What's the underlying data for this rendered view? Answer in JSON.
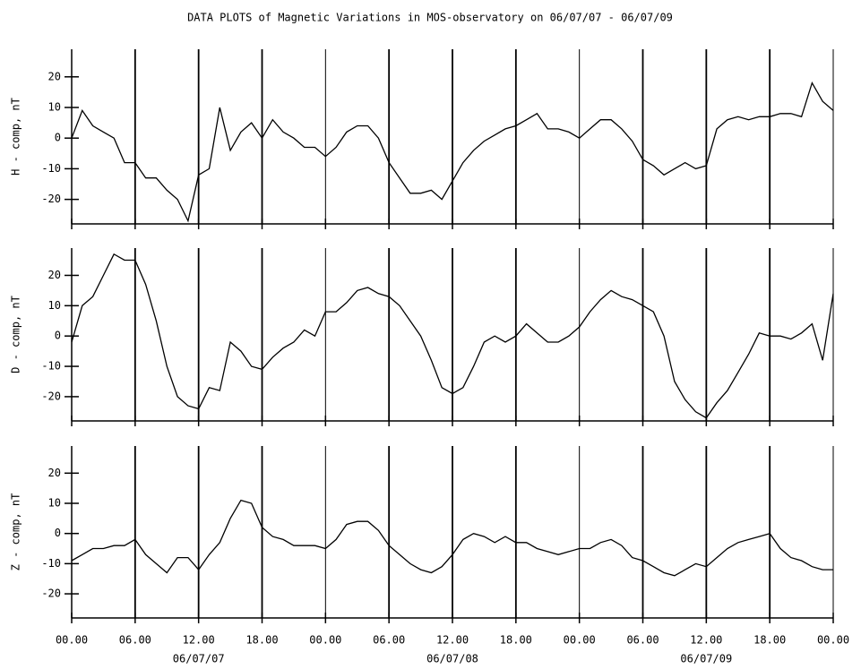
{
  "title": "DATA PLOTS of Magnetic Variations in MOS-observatory on 06/07/07 - 06/07/09",
  "chart_data": [
    {
      "type": "line",
      "ylabel": "H - comp, nT",
      "x": [
        0,
        1,
        2,
        3,
        4,
        5,
        6,
        7,
        8,
        9,
        10,
        11,
        12,
        13,
        14,
        15,
        16,
        17,
        18,
        19,
        20,
        21,
        22,
        23,
        24,
        25,
        26,
        27,
        28,
        29,
        30,
        31,
        32,
        33,
        34,
        35,
        36,
        37,
        38,
        39,
        40,
        41,
        42,
        43,
        44,
        45,
        46,
        47,
        48,
        49,
        50,
        51,
        52,
        53,
        54,
        55,
        56,
        57,
        58,
        59,
        60,
        61,
        62,
        63,
        64,
        65,
        66,
        67,
        68,
        69,
        70,
        71,
        72
      ],
      "series": [
        {
          "color": "#000000",
          "values": [
            0,
            9,
            4,
            2,
            0,
            -8,
            -8,
            -13,
            -13,
            -17,
            -20,
            -27,
            -12,
            -10,
            10,
            -4,
            2,
            5,
            0,
            6,
            2,
            0,
            -3,
            -3,
            -6,
            -3,
            2,
            4,
            4,
            0,
            -8,
            -13,
            -18,
            -18,
            -17,
            -20,
            -14,
            -8,
            -4,
            -1,
            1,
            3,
            4,
            6,
            8,
            3,
            3,
            2,
            0,
            3,
            6,
            6,
            3,
            -1,
            -7,
            -9,
            -12,
            -10,
            -8,
            -10,
            -9,
            3,
            6,
            7,
            6,
            7,
            7,
            8,
            8,
            7,
            18,
            12,
            9
          ]
        }
      ],
      "xlim": [
        0,
        72
      ],
      "ylim": [
        -28,
        29
      ],
      "xticks": [
        0,
        6,
        12,
        18,
        24,
        30,
        36,
        42,
        48,
        54,
        60,
        66,
        72
      ],
      "yticks": [
        -20,
        -10,
        0,
        10,
        20
      ],
      "grid": true
    },
    {
      "type": "line",
      "ylabel": "D - comp, nT",
      "x": [
        0,
        1,
        2,
        3,
        4,
        5,
        6,
        7,
        8,
        9,
        10,
        11,
        12,
        13,
        14,
        15,
        16,
        17,
        18,
        19,
        20,
        21,
        22,
        23,
        24,
        25,
        26,
        27,
        28,
        29,
        30,
        31,
        32,
        33,
        34,
        35,
        36,
        37,
        38,
        39,
        40,
        41,
        42,
        43,
        44,
        45,
        46,
        47,
        48,
        49,
        50,
        51,
        52,
        53,
        54,
        55,
        56,
        57,
        58,
        59,
        60,
        61,
        62,
        63,
        64,
        65,
        66,
        67,
        68,
        69,
        70,
        71,
        72
      ],
      "series": [
        {
          "color": "#000000",
          "values": [
            -2,
            10,
            13,
            20,
            27,
            25,
            25,
            17,
            5,
            -10,
            -20,
            -23,
            -24,
            -17,
            -18,
            -2,
            -5,
            -10,
            -11,
            -7,
            -4,
            -2,
            2,
            0,
            8,
            8,
            11,
            15,
            16,
            14,
            13,
            10,
            5,
            0,
            -8,
            -17,
            -19,
            -17,
            -10,
            -2,
            0,
            -2,
            0,
            4,
            1,
            -2,
            -2,
            0,
            3,
            8,
            12,
            15,
            13,
            12,
            10,
            8,
            0,
            -15,
            -21,
            -25,
            -27,
            -22,
            -18,
            -12,
            -6,
            1,
            0,
            0,
            -1,
            1,
            4,
            -8,
            14
          ]
        }
      ],
      "xlim": [
        0,
        72
      ],
      "ylim": [
        -28,
        29
      ],
      "xticks": [
        0,
        6,
        12,
        18,
        24,
        30,
        36,
        42,
        48,
        54,
        60,
        66,
        72
      ],
      "yticks": [
        -20,
        -10,
        0,
        10,
        20
      ],
      "grid": true
    },
    {
      "type": "line",
      "ylabel": "Z - comp, nT",
      "x": [
        0,
        1,
        2,
        3,
        4,
        5,
        6,
        7,
        8,
        9,
        10,
        11,
        12,
        13,
        14,
        15,
        16,
        17,
        18,
        19,
        20,
        21,
        22,
        23,
        24,
        25,
        26,
        27,
        28,
        29,
        30,
        31,
        32,
        33,
        34,
        35,
        36,
        37,
        38,
        39,
        40,
        41,
        42,
        43,
        44,
        45,
        46,
        47,
        48,
        49,
        50,
        51,
        52,
        53,
        54,
        55,
        56,
        57,
        58,
        59,
        60,
        61,
        62,
        63,
        64,
        65,
        66,
        67,
        68,
        69,
        70,
        71,
        72
      ],
      "series": [
        {
          "color": "#000000",
          "values": [
            -9,
            -7,
            -5,
            -5,
            -4,
            -4,
            -2,
            -7,
            -10,
            -13,
            -8,
            -8,
            -12,
            -7,
            -3,
            5,
            11,
            10,
            2,
            -1,
            -2,
            -4,
            -4,
            -4,
            -5,
            -2,
            3,
            4,
            4,
            1,
            -4,
            -7,
            -10,
            -12,
            -13,
            -11,
            -7,
            -2,
            0,
            -1,
            -3,
            -1,
            -3,
            -3,
            -5,
            -6,
            -7,
            -6,
            -5,
            -5,
            -3,
            -2,
            -4,
            -8,
            -9,
            -11,
            -13,
            -14,
            -12,
            -10,
            -11,
            -8,
            -5,
            -3,
            -2,
            -1,
            0,
            -5,
            -8,
            -9,
            -11,
            -12,
            -12
          ]
        }
      ],
      "xlim": [
        0,
        72
      ],
      "ylim": [
        -28,
        29
      ],
      "xticks": [
        {
          "value": 0,
          "label": "00.00"
        },
        {
          "value": 6,
          "label": "06.00"
        },
        {
          "value": 12,
          "label": "12.00"
        },
        {
          "value": 18,
          "label": "18.00"
        },
        {
          "value": 24,
          "label": "00.00"
        },
        {
          "value": 30,
          "label": "06.00"
        },
        {
          "value": 36,
          "label": "12.00"
        },
        {
          "value": 42,
          "label": "18.00"
        },
        {
          "value": 48,
          "label": "00.00"
        },
        {
          "value": 54,
          "label": "06.00"
        },
        {
          "value": 60,
          "label": "12.00"
        },
        {
          "value": 66,
          "label": "18.00"
        },
        {
          "value": 72,
          "label": "00.00"
        }
      ],
      "date_labels": [
        {
          "value": 12,
          "label": "06/07/07"
        },
        {
          "value": 36,
          "label": "06/07/08"
        },
        {
          "value": 60,
          "label": "06/07/09"
        }
      ],
      "yticks": [
        -20,
        -10,
        0,
        10,
        20
      ],
      "grid": true
    }
  ]
}
